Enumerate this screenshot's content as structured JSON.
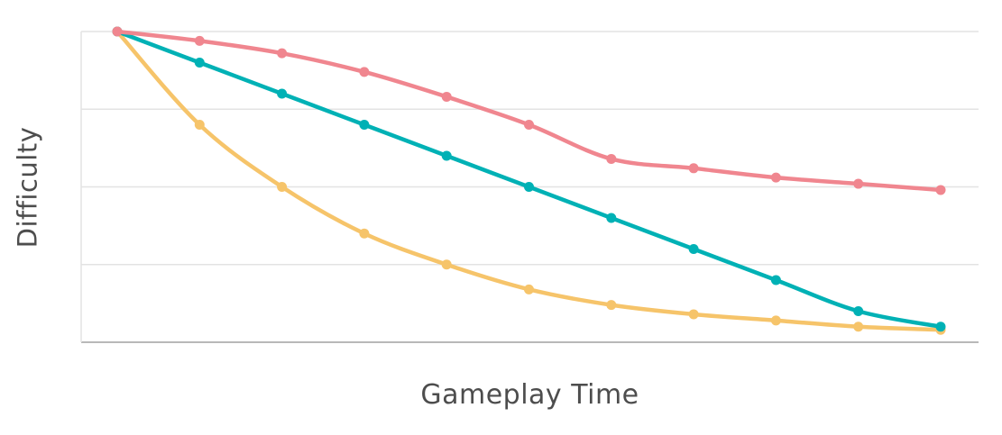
{
  "chart_data": {
    "type": "line",
    "title": "",
    "xlabel": "Gameplay Time",
    "ylabel": "Difficulty",
    "x": [
      0,
      1,
      2,
      3,
      4,
      5,
      6,
      7,
      8,
      9,
      10
    ],
    "series": [
      {
        "name": "yellow",
        "color": "#f6c46a",
        "values": [
          100,
          70,
          50,
          35,
          25,
          17,
          12,
          9,
          7,
          5,
          4
        ]
      },
      {
        "name": "teal",
        "color": "#00b1b5",
        "values": [
          100,
          90,
          80,
          70,
          60,
          50,
          40,
          30,
          20,
          10,
          5
        ]
      },
      {
        "name": "pink",
        "color": "#f0868f",
        "values": [
          100,
          97,
          93,
          87,
          79,
          70,
          59,
          56,
          53,
          51,
          49
        ]
      }
    ],
    "ylim": [
      0,
      100
    ],
    "gridlines": [
      0,
      25,
      50,
      75,
      100
    ],
    "legend": "none",
    "grid": "horizontal",
    "colors": {
      "grid": "#e3e3e3",
      "axis": "#b8b8b8",
      "text": "#4d4d4d",
      "background": "#ffffff"
    }
  }
}
